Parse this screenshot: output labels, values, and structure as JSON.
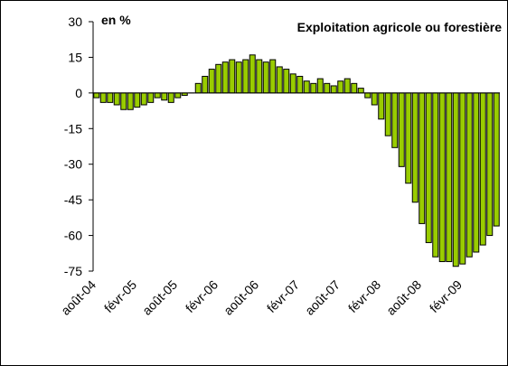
{
  "chart_data": {
    "type": "bar",
    "title": "Exploitation agricole ou forestière",
    "y_label": "en %",
    "categories": [
      "août-04",
      null,
      null,
      null,
      null,
      null,
      "févr-05",
      null,
      null,
      null,
      null,
      null,
      "août-05",
      null,
      null,
      null,
      null,
      null,
      "févr-06",
      null,
      null,
      null,
      null,
      null,
      "août-06",
      null,
      null,
      null,
      null,
      null,
      "févr-07",
      null,
      null,
      null,
      null,
      null,
      "août-07",
      null,
      null,
      null,
      null,
      null,
      "févr-08",
      null,
      null,
      null,
      null,
      null,
      "août-08",
      null,
      null,
      null,
      null,
      null,
      "févr-09",
      null,
      null,
      null,
      null,
      null
    ],
    "values": [
      -2,
      -4,
      -4,
      -5,
      -7,
      -7,
      -6,
      -5,
      -4,
      -2,
      -3,
      -4,
      -2,
      -1,
      0,
      4,
      7,
      10,
      12,
      13,
      14,
      13,
      14,
      16,
      14,
      13,
      14,
      11,
      10,
      8,
      7,
      5,
      4,
      6,
      4,
      3,
      5,
      6,
      4,
      2,
      -2,
      -5,
      -11,
      -18,
      -23,
      -31,
      -38,
      -46,
      -55,
      -63,
      -69,
      -71,
      -71,
      -73,
      -72,
      -69,
      -67,
      -64,
      -60,
      -56
    ],
    "color": "#99cc00",
    "ylim": [
      -75,
      30
    ],
    "yticks": [
      -75,
      -60,
      -45,
      -30,
      -15,
      0,
      15,
      30
    ]
  }
}
